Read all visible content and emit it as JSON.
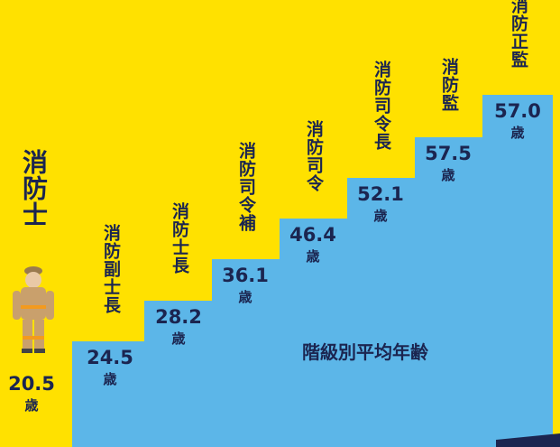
{
  "title": "階級別平均年齢",
  "unit": "歳",
  "steps": [
    {
      "rank": "消防士",
      "age": "20.5"
    },
    {
      "rank": "消防副士長",
      "age": "24.5"
    },
    {
      "rank": "消防士長",
      "age": "28.2"
    },
    {
      "rank": "消防司令補",
      "age": "36.1"
    },
    {
      "rank": "消防司令",
      "age": "46.4"
    },
    {
      "rank": "消防司令長",
      "age": "52.1"
    },
    {
      "rank": "消防監",
      "age": "57.5"
    },
    {
      "rank": "消防正監",
      "age": "57.0"
    }
  ]
}
